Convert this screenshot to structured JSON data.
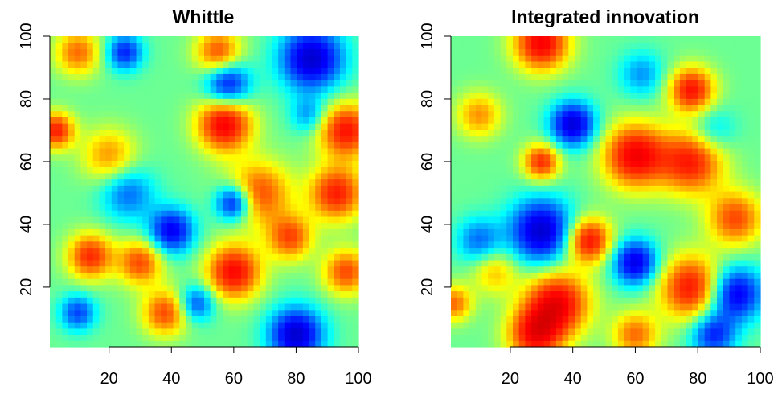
{
  "chart_data": [
    {
      "type": "heatmap",
      "title": "Whittle",
      "xlim": [
        1,
        100
      ],
      "ylim": [
        1,
        100
      ],
      "xticks": [
        20,
        40,
        60,
        80,
        100
      ],
      "yticks": [
        20,
        40,
        60,
        80,
        100
      ],
      "colormap": "jet",
      "grid": false,
      "blobs": [
        {
          "x": 57,
          "y": 72,
          "v": 1.0,
          "s": 6
        },
        {
          "x": 96,
          "y": 70,
          "v": 0.9,
          "s": 6
        },
        {
          "x": 3,
          "y": 70,
          "v": 0.85,
          "s": 4
        },
        {
          "x": 60,
          "y": 25,
          "v": 0.95,
          "s": 6
        },
        {
          "x": 68,
          "y": 50,
          "v": 0.7,
          "s": 7
        },
        {
          "x": 93,
          "y": 50,
          "v": 0.85,
          "s": 6
        },
        {
          "x": 14,
          "y": 30,
          "v": 0.8,
          "s": 5
        },
        {
          "x": 30,
          "y": 28,
          "v": 0.7,
          "s": 5
        },
        {
          "x": 38,
          "y": 12,
          "v": 0.7,
          "s": 5
        },
        {
          "x": 55,
          "y": 95,
          "v": 0.7,
          "s": 5
        },
        {
          "x": 10,
          "y": 95,
          "v": 0.6,
          "s": 5
        },
        {
          "x": 78,
          "y": 36,
          "v": 0.7,
          "s": 5
        },
        {
          "x": 96,
          "y": 25,
          "v": 0.7,
          "s": 5
        },
        {
          "x": 20,
          "y": 62,
          "v": 0.5,
          "s": 6
        },
        {
          "x": 85,
          "y": 93,
          "v": -1.0,
          "s": 7
        },
        {
          "x": 80,
          "y": 5,
          "v": -1.0,
          "s": 6
        },
        {
          "x": 60,
          "y": 47,
          "v": -0.9,
          "s": 4
        },
        {
          "x": 58,
          "y": 85,
          "v": -0.8,
          "s": 5
        },
        {
          "x": 40,
          "y": 38,
          "v": -0.85,
          "s": 5
        },
        {
          "x": 25,
          "y": 95,
          "v": -0.7,
          "s": 4
        },
        {
          "x": 10,
          "y": 12,
          "v": -0.6,
          "s": 4
        },
        {
          "x": 26,
          "y": 50,
          "v": -0.5,
          "s": 6
        },
        {
          "x": 48,
          "y": 15,
          "v": -0.6,
          "s": 4
        },
        {
          "x": 84,
          "y": 75,
          "v": -0.4,
          "s": 4
        }
      ]
    },
    {
      "type": "heatmap",
      "title": "Integrated innovation",
      "xlim": [
        1,
        100
      ],
      "ylim": [
        1,
        100
      ],
      "xticks": [
        20,
        40,
        60,
        80,
        100
      ],
      "yticks": [
        20,
        40,
        60,
        80,
        100
      ],
      "colormap": "jet",
      "grid": false,
      "blobs": [
        {
          "x": 30,
          "y": 98,
          "v": 1.0,
          "s": 6
        },
        {
          "x": 78,
          "y": 83,
          "v": 0.9,
          "s": 5
        },
        {
          "x": 60,
          "y": 62,
          "v": 1.0,
          "s": 7
        },
        {
          "x": 78,
          "y": 60,
          "v": 0.85,
          "s": 7
        },
        {
          "x": 45,
          "y": 35,
          "v": 0.95,
          "s": 5
        },
        {
          "x": 35,
          "y": 15,
          "v": 1.0,
          "s": 7
        },
        {
          "x": 28,
          "y": 5,
          "v": 0.9,
          "s": 6
        },
        {
          "x": 78,
          "y": 20,
          "v": 0.9,
          "s": 7
        },
        {
          "x": 92,
          "y": 42,
          "v": 0.7,
          "s": 6
        },
        {
          "x": 30,
          "y": 60,
          "v": 0.8,
          "s": 4
        },
        {
          "x": 10,
          "y": 75,
          "v": 0.5,
          "s": 5
        },
        {
          "x": 60,
          "y": 5,
          "v": 0.6,
          "s": 5
        },
        {
          "x": 2,
          "y": 15,
          "v": 0.6,
          "s": 4
        },
        {
          "x": 15,
          "y": 25,
          "v": 0.4,
          "s": 5
        },
        {
          "x": 30,
          "y": 38,
          "v": -1.0,
          "s": 7
        },
        {
          "x": 40,
          "y": 72,
          "v": -0.95,
          "s": 5
        },
        {
          "x": 60,
          "y": 28,
          "v": -0.9,
          "s": 5
        },
        {
          "x": 92,
          "y": 18,
          "v": -0.9,
          "s": 6
        },
        {
          "x": 85,
          "y": 5,
          "v": -0.7,
          "s": 5
        },
        {
          "x": 10,
          "y": 35,
          "v": -0.5,
          "s": 5
        },
        {
          "x": 62,
          "y": 88,
          "v": -0.4,
          "s": 5
        },
        {
          "x": 85,
          "y": 70,
          "v": -0.3,
          "s": 5
        }
      ]
    }
  ]
}
